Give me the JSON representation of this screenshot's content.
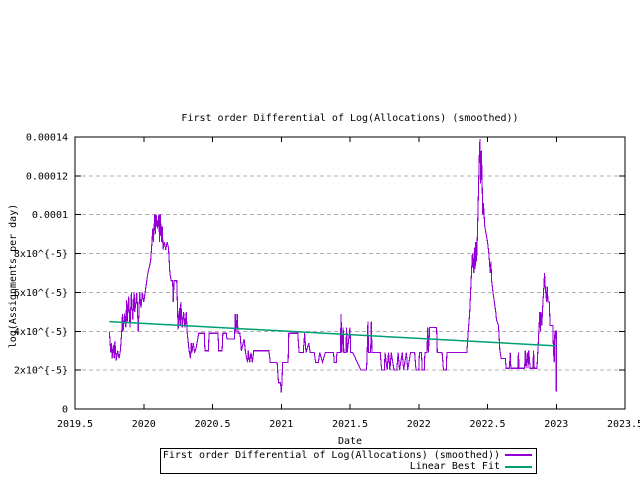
{
  "chart_data": {
    "type": "line",
    "title": "First order Differential of Log(Allocations) (smoothed))",
    "xlabel": "Date",
    "ylabel": "log(Assignments per day)",
    "xlim": [
      2019.5,
      2023.5
    ],
    "ylim": [
      0,
      0.00014
    ],
    "grid": "horizontal-dashed",
    "legend_position": "below-x-axis",
    "background": "#ffffff",
    "grid_color": "#b0b0b0",
    "axis_color": "#000000",
    "value_scale": "1e-5",
    "x_ticks": [
      {
        "value": 2019.5,
        "label": "2019.5"
      },
      {
        "value": 2020,
        "label": "2020"
      },
      {
        "value": 2020.5,
        "label": "2020.5"
      },
      {
        "value": 2021,
        "label": "2021"
      },
      {
        "value": 2021.5,
        "label": "2021.5"
      },
      {
        "value": 2022,
        "label": "2022"
      },
      {
        "value": 2022.5,
        "label": "2022.5"
      },
      {
        "value": 2023,
        "label": "2023"
      },
      {
        "value": 2023.5,
        "label": "2023.5"
      }
    ],
    "y_ticks": [
      {
        "value_e5": 0,
        "label": "0",
        "grid": false
      },
      {
        "value_e5": 2,
        "label": "2x10^{-5}",
        "grid": true
      },
      {
        "value_e5": 4,
        "label": "4x10^{-5}",
        "grid": true
      },
      {
        "value_e5": 6,
        "label": "6x10^{-5}",
        "grid": true
      },
      {
        "value_e5": 8,
        "label": "8x10^{-5}",
        "grid": true
      },
      {
        "value_e5": 10,
        "label": "0.0001",
        "grid": true
      },
      {
        "value_e5": 12,
        "label": "0.00012",
        "grid": true
      },
      {
        "value_e5": 14,
        "label": "0.00014",
        "grid": false
      }
    ],
    "series": [
      {
        "name": "First order Differential of Log(Allocations) (smoothed))",
        "color": "#9400D3",
        "style": "step-noise",
        "points_e5": [
          [
            2019.75,
            4.0
          ],
          [
            2019.76,
            2.9
          ],
          [
            2019.765,
            3.4
          ],
          [
            2019.77,
            2.6
          ],
          [
            2019.78,
            3.3
          ],
          [
            2019.785,
            2.6
          ],
          [
            2019.79,
            3.5
          ],
          [
            2019.8,
            2.5
          ],
          [
            2019.81,
            3.0
          ],
          [
            2019.82,
            2.6
          ],
          [
            2019.83,
            3.0
          ],
          [
            2019.84,
            4.0
          ],
          [
            2019.845,
            4.9
          ],
          [
            2019.85,
            4.0
          ],
          [
            2019.86,
            4.9
          ],
          [
            2019.87,
            4.2
          ],
          [
            2019.875,
            5.6
          ],
          [
            2019.88,
            4.5
          ],
          [
            2019.89,
            5.8
          ],
          [
            2019.9,
            4.2
          ],
          [
            2019.91,
            6.0
          ],
          [
            2019.92,
            4.6
          ],
          [
            2019.93,
            6.0
          ],
          [
            2019.935,
            5.0
          ],
          [
            2019.95,
            6.0
          ],
          [
            2019.96,
            4.0
          ],
          [
            2019.97,
            6.0
          ],
          [
            2019.98,
            5.2
          ],
          [
            2019.99,
            6.0
          ],
          [
            2020.0,
            5.5
          ],
          [
            2020.02,
            6.5
          ],
          [
            2020.03,
            7.0
          ],
          [
            2020.05,
            7.6
          ],
          [
            2020.06,
            8.6
          ],
          [
            2020.065,
            9.3
          ],
          [
            2020.07,
            8.6
          ],
          [
            2020.08,
            10.0
          ],
          [
            2020.085,
            9.0
          ],
          [
            2020.09,
            10.0
          ],
          [
            2020.1,
            9.3
          ],
          [
            2020.11,
            10.0
          ],
          [
            2020.115,
            8.6
          ],
          [
            2020.12,
            10.0
          ],
          [
            2020.13,
            8.6
          ],
          [
            2020.135,
            9.4
          ],
          [
            2020.14,
            8.2
          ],
          [
            2020.15,
            8.6
          ],
          [
            2020.16,
            8.2
          ],
          [
            2020.17,
            8.6
          ],
          [
            2020.18,
            8.3
          ],
          [
            2020.19,
            7.0
          ],
          [
            2020.2,
            6.6
          ],
          [
            2020.21,
            6.6
          ],
          [
            2020.215,
            5.5
          ],
          [
            2020.22,
            6.6
          ],
          [
            2020.24,
            6.6
          ],
          [
            2020.25,
            4.1
          ],
          [
            2020.26,
            5.2
          ],
          [
            2020.265,
            4.3
          ],
          [
            2020.27,
            5.5
          ],
          [
            2020.28,
            4.2
          ],
          [
            2020.29,
            5.0
          ],
          [
            2020.3,
            4.2
          ],
          [
            2020.31,
            5.0
          ],
          [
            2020.315,
            4.0
          ],
          [
            2020.33,
            3.0
          ],
          [
            2020.34,
            2.6
          ],
          [
            2020.345,
            3.4
          ],
          [
            2020.35,
            2.9
          ],
          [
            2020.36,
            3.4
          ],
          [
            2020.37,
            2.9
          ],
          [
            2020.38,
            3.1
          ],
          [
            2020.4,
            3.9
          ],
          [
            2020.44,
            3.9
          ],
          [
            2020.445,
            3.0
          ],
          [
            2020.47,
            3.0
          ],
          [
            2020.475,
            3.9
          ],
          [
            2020.54,
            3.9
          ],
          [
            2020.545,
            3.0
          ],
          [
            2020.57,
            3.0
          ],
          [
            2020.575,
            3.9
          ],
          [
            2020.6,
            3.9
          ],
          [
            2020.605,
            3.6
          ],
          [
            2020.66,
            3.6
          ],
          [
            2020.665,
            4.9
          ],
          [
            2020.67,
            3.9
          ],
          [
            2020.68,
            4.9
          ],
          [
            2020.685,
            3.9
          ],
          [
            2020.7,
            3.9
          ],
          [
            2020.71,
            3.0
          ],
          [
            2020.73,
            3.6
          ],
          [
            2020.74,
            2.9
          ],
          [
            2020.755,
            2.4
          ],
          [
            2020.76,
            3.0
          ],
          [
            2020.77,
            2.4
          ],
          [
            2020.78,
            2.9
          ],
          [
            2020.79,
            2.4
          ],
          [
            2020.8,
            3.0
          ],
          [
            2020.85,
            3.0
          ],
          [
            2020.91,
            3.0
          ],
          [
            2020.92,
            2.4
          ],
          [
            2020.97,
            2.4
          ],
          [
            2020.98,
            1.35
          ],
          [
            2020.995,
            1.35
          ],
          [
            2021.0,
            0.85
          ],
          [
            2021.005,
            1.35
          ],
          [
            2021.01,
            2.4
          ],
          [
            2021.05,
            2.4
          ],
          [
            2021.055,
            3.9
          ],
          [
            2021.12,
            3.9
          ],
          [
            2021.13,
            2.9
          ],
          [
            2021.16,
            2.9
          ],
          [
            2021.17,
            3.9
          ],
          [
            2021.18,
            2.9
          ],
          [
            2021.2,
            3.4
          ],
          [
            2021.21,
            2.9
          ],
          [
            2021.24,
            2.9
          ],
          [
            2021.25,
            2.4
          ],
          [
            2021.27,
            2.4
          ],
          [
            2021.28,
            2.9
          ],
          [
            2021.3,
            2.4
          ],
          [
            2021.32,
            2.9
          ],
          [
            2021.38,
            2.9
          ],
          [
            2021.385,
            2.4
          ],
          [
            2021.4,
            2.4
          ],
          [
            2021.405,
            2.9
          ],
          [
            2021.43,
            2.9
          ],
          [
            2021.435,
            4.9
          ],
          [
            2021.44,
            2.9
          ],
          [
            2021.45,
            4.2
          ],
          [
            2021.455,
            2.9
          ],
          [
            2021.47,
            2.9
          ],
          [
            2021.475,
            4.2
          ],
          [
            2021.48,
            2.9
          ],
          [
            2021.5,
            4.2
          ],
          [
            2021.505,
            2.9
          ],
          [
            2021.52,
            2.9
          ],
          [
            2021.58,
            2.0
          ],
          [
            2021.62,
            2.0
          ],
          [
            2021.625,
            2.9
          ],
          [
            2021.63,
            4.5
          ],
          [
            2021.635,
            2.9
          ],
          [
            2021.65,
            2.9
          ],
          [
            2021.655,
            4.5
          ],
          [
            2021.66,
            2.9
          ],
          [
            2021.72,
            2.9
          ],
          [
            2021.73,
            2.0
          ],
          [
            2021.75,
            2.0
          ],
          [
            2021.755,
            2.9
          ],
          [
            2021.77,
            2.0
          ],
          [
            2021.78,
            2.9
          ],
          [
            2021.79,
            2.0
          ],
          [
            2021.8,
            2.9
          ],
          [
            2021.82,
            2.0
          ],
          [
            2021.84,
            2.0
          ],
          [
            2021.85,
            2.9
          ],
          [
            2021.86,
            2.0
          ],
          [
            2021.88,
            2.9
          ],
          [
            2021.89,
            2.0
          ],
          [
            2021.91,
            2.9
          ],
          [
            2021.92,
            2.0
          ],
          [
            2021.94,
            2.9
          ],
          [
            2021.97,
            2.9
          ],
          [
            2021.98,
            2.0
          ],
          [
            2022.0,
            2.0
          ],
          [
            2022.005,
            2.9
          ],
          [
            2022.02,
            2.9
          ],
          [
            2022.025,
            2.0
          ],
          [
            2022.04,
            2.0
          ],
          [
            2022.045,
            2.9
          ],
          [
            2022.06,
            2.9
          ],
          [
            2022.065,
            4.2
          ],
          [
            2022.07,
            2.9
          ],
          [
            2022.08,
            4.2
          ],
          [
            2022.13,
            4.2
          ],
          [
            2022.135,
            2.9
          ],
          [
            2022.17,
            2.9
          ],
          [
            2022.18,
            2.0
          ],
          [
            2022.2,
            2.0
          ],
          [
            2022.205,
            2.9
          ],
          [
            2022.35,
            2.9
          ],
          [
            2022.36,
            4.0
          ],
          [
            2022.37,
            4.9
          ],
          [
            2022.38,
            6.5
          ],
          [
            2022.39,
            8.0
          ],
          [
            2022.4,
            7.0
          ],
          [
            2022.405,
            8.3
          ],
          [
            2022.41,
            7.2
          ],
          [
            2022.415,
            8.6
          ],
          [
            2022.42,
            7.6
          ],
          [
            2022.425,
            8.6
          ],
          [
            2022.43,
            10.0
          ],
          [
            2022.44,
            13.0
          ],
          [
            2022.445,
            13.9
          ],
          [
            2022.45,
            11.6
          ],
          [
            2022.455,
            13.3
          ],
          [
            2022.46,
            12.0
          ],
          [
            2022.465,
            10.0
          ],
          [
            2022.47,
            10.6
          ],
          [
            2022.48,
            9.4
          ],
          [
            2022.49,
            9.0
          ],
          [
            2022.5,
            8.6
          ],
          [
            2022.51,
            8.0
          ],
          [
            2022.52,
            7.0
          ],
          [
            2022.525,
            7.6
          ],
          [
            2022.53,
            6.6
          ],
          [
            2022.54,
            6.0
          ],
          [
            2022.55,
            5.5
          ],
          [
            2022.56,
            5.0
          ],
          [
            2022.565,
            4.6
          ],
          [
            2022.58,
            4.3
          ],
          [
            2022.59,
            3.0
          ],
          [
            2022.6,
            2.6
          ],
          [
            2022.63,
            2.6
          ],
          [
            2022.635,
            2.1
          ],
          [
            2022.66,
            2.1
          ],
          [
            2022.665,
            2.9
          ],
          [
            2022.67,
            2.1
          ],
          [
            2022.72,
            2.1
          ],
          [
            2022.725,
            2.9
          ],
          [
            2022.73,
            2.1
          ],
          [
            2022.77,
            2.1
          ],
          [
            2022.775,
            3.0
          ],
          [
            2022.78,
            2.1
          ],
          [
            2022.79,
            2.9
          ],
          [
            2022.795,
            2.1
          ],
          [
            2022.8,
            3.0
          ],
          [
            2022.81,
            2.1
          ],
          [
            2022.83,
            2.1
          ],
          [
            2022.835,
            3.0
          ],
          [
            2022.84,
            2.1
          ],
          [
            2022.86,
            2.1
          ],
          [
            2022.87,
            3.5
          ],
          [
            2022.875,
            4.2
          ],
          [
            2022.88,
            5.0
          ],
          [
            2022.885,
            4.0
          ],
          [
            2022.89,
            5.0
          ],
          [
            2022.895,
            4.3
          ],
          [
            2022.9,
            5.0
          ],
          [
            2022.905,
            5.7
          ],
          [
            2022.91,
            6.3
          ],
          [
            2022.915,
            7.0
          ],
          [
            2022.92,
            6.3
          ],
          [
            2022.93,
            5.5
          ],
          [
            2022.935,
            6.3
          ],
          [
            2022.94,
            5.5
          ],
          [
            2022.95,
            5.5
          ],
          [
            2022.955,
            4.3
          ],
          [
            2022.975,
            4.3
          ],
          [
            2022.98,
            3.0
          ],
          [
            2022.985,
            2.4
          ],
          [
            2022.99,
            4.0
          ],
          [
            2023.0,
            4.0
          ],
          [
            2023.0,
            0.9
          ]
        ]
      },
      {
        "name": "Linear Best Fit",
        "color": "#009E73",
        "style": "straight",
        "points_e5": [
          [
            2019.75,
            4.5
          ],
          [
            2023.0,
            3.25
          ]
        ]
      }
    ]
  }
}
